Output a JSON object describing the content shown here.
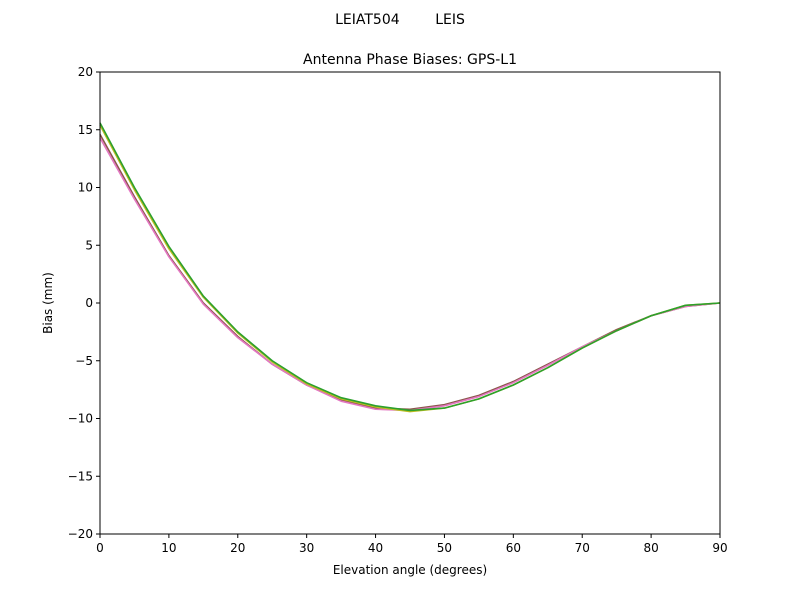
{
  "figure": {
    "suptitle": "LEIAT504        LEIS"
  },
  "chart_data": {
    "type": "line",
    "title": "Antenna Phase Biases: GPS-L1",
    "xlabel": "Elevation angle (degrees)",
    "ylabel": "Bias (mm)",
    "xlim": [
      0,
      90
    ],
    "ylim": [
      -20,
      20
    ],
    "xticks": [
      "0",
      "10",
      "20",
      "30",
      "40",
      "50",
      "60",
      "70",
      "80",
      "90"
    ],
    "yticks": [
      "20",
      "15",
      "10",
      "5",
      "0",
      "−5",
      "−10",
      "−15",
      "−20"
    ],
    "grid": false,
    "x": [
      0,
      5,
      10,
      15,
      20,
      25,
      30,
      35,
      40,
      45,
      50,
      55,
      60,
      65,
      70,
      75,
      80,
      85,
      90
    ],
    "series": [
      {
        "color": "#8c564b",
        "values": [
          14.6,
          9.2,
          4.1,
          0.0,
          -2.9,
          -5.3,
          -7.1,
          -8.4,
          -9.1,
          -9.2,
          -8.8,
          -8.0,
          -6.8,
          -5.3,
          -3.8,
          -2.3,
          -1.1,
          -0.3,
          0.0
        ]
      },
      {
        "color": "#e377c2",
        "values": [
          14.3,
          9.0,
          4.0,
          -0.1,
          -3.0,
          -5.3,
          -7.1,
          -8.5,
          -9.2,
          -9.3,
          -8.9,
          -8.1,
          -6.9,
          -5.4,
          -3.8,
          -2.4,
          -1.1,
          -0.3,
          0.0
        ]
      },
      {
        "color": "#bcbd22",
        "values": [
          15.4,
          9.8,
          4.7,
          0.5,
          -2.6,
          -5.1,
          -7.0,
          -8.3,
          -9.0,
          -9.4,
          -9.1,
          -8.3,
          -7.1,
          -5.6,
          -3.9,
          -2.4,
          -1.1,
          -0.2,
          0.0
        ]
      },
      {
        "color": "#2ca02c",
        "values": [
          15.6,
          10.0,
          4.9,
          0.6,
          -2.5,
          -5.0,
          -6.9,
          -8.2,
          -8.9,
          -9.3,
          -9.1,
          -8.3,
          -7.1,
          -5.6,
          -3.9,
          -2.4,
          -1.1,
          -0.2,
          0.0
        ]
      }
    ]
  }
}
